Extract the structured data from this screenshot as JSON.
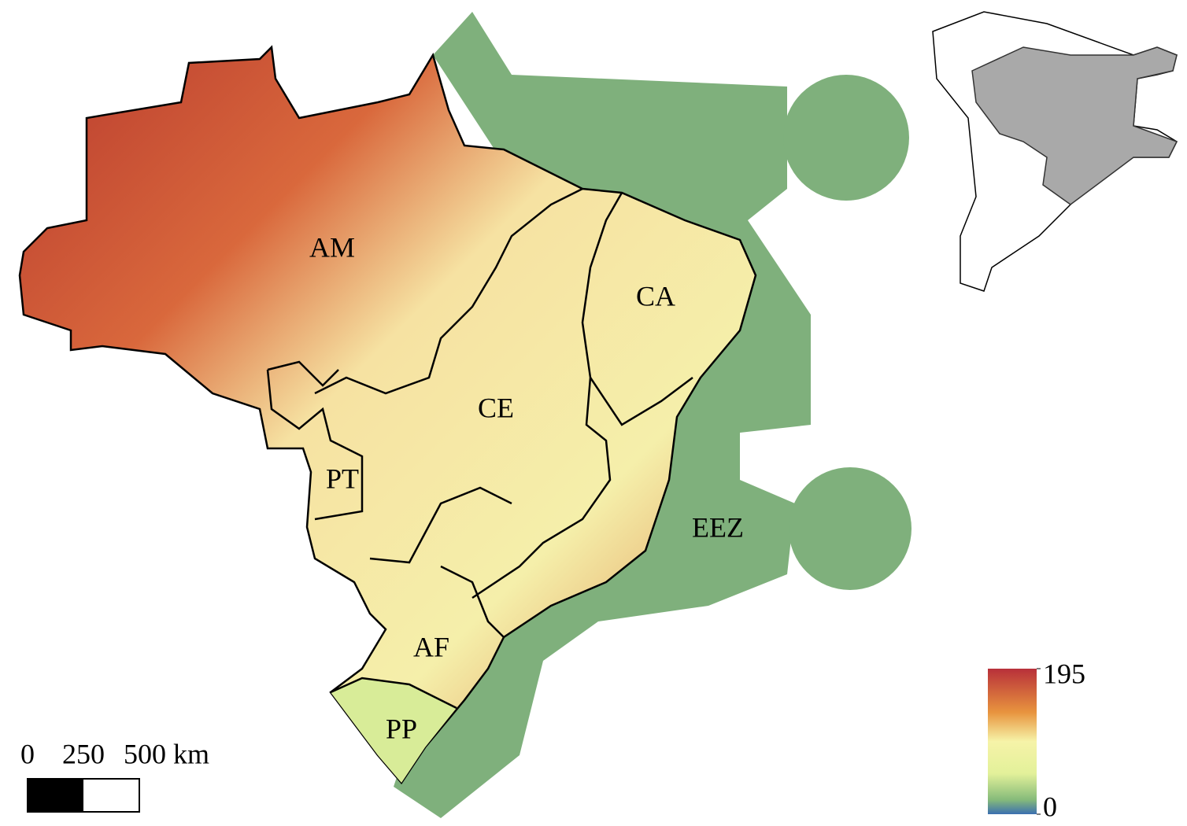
{
  "map": {
    "regions": [
      "AM",
      "CA",
      "CE",
      "PT",
      "AF",
      "PP",
      "EEZ"
    ],
    "scale_bar": {
      "ticks": [
        0,
        250,
        {
          "value": 500,
          "label": "500 km"
        }
      ],
      "lim": [
        0,
        500
      ]
    },
    "legend": {
      "lim": [
        0,
        195
      ],
      "ticks": [
        0,
        195
      ]
    }
  }
}
